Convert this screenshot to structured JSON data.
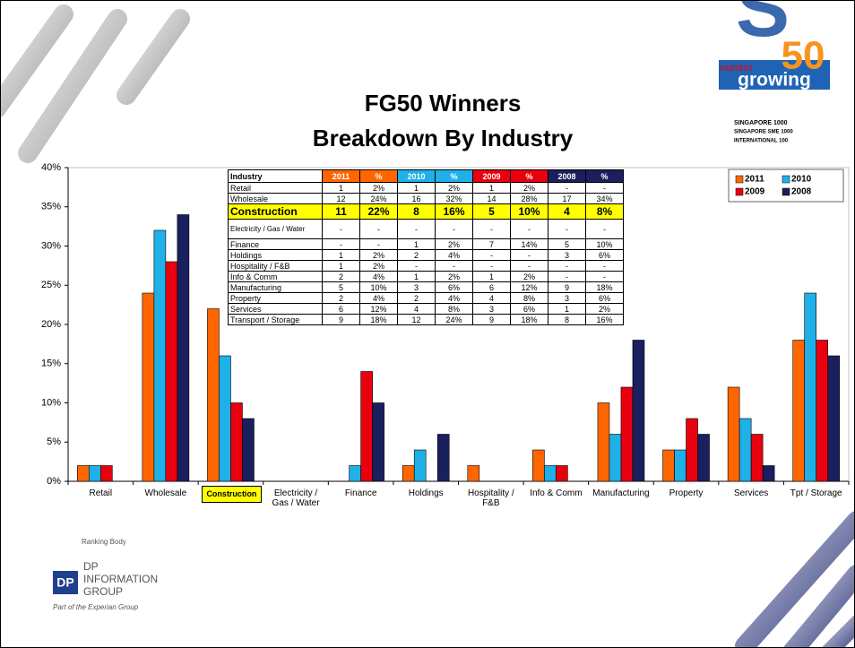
{
  "chart_data": {
    "type": "bar",
    "title": "FG50 Winners",
    "subtitle": "Breakdown By Industry",
    "categories": [
      "Retail",
      "Wholesale",
      "Construction",
      "Electricity / Gas / Water",
      "Finance",
      "Holdings",
      "Hospitality / F&B",
      "Info & Comm",
      "Manufacturing",
      "Property",
      "Services",
      "Tpt / Storage"
    ],
    "highlight_category_index": 2,
    "series": [
      {
        "name": "2011",
        "color": "#ff6600",
        "values": [
          2,
          24,
          22,
          0,
          0,
          2,
          2,
          4,
          10,
          4,
          12,
          18
        ]
      },
      {
        "name": "2010",
        "color": "#1fb0e8",
        "values": [
          2,
          32,
          16,
          0,
          2,
          4,
          0,
          2,
          6,
          4,
          8,
          24
        ]
      },
      {
        "name": "2009",
        "color": "#e8000f",
        "values": [
          2,
          28,
          10,
          0,
          14,
          0,
          0,
          2,
          12,
          8,
          6,
          18
        ]
      },
      {
        "name": "2008",
        "color": "#1a1f5e",
        "values": [
          0,
          34,
          8,
          0,
          10,
          6,
          0,
          0,
          18,
          6,
          2,
          16
        ]
      }
    ],
    "ylim": [
      0,
      40
    ],
    "yticks": [
      {
        "value": 0,
        "label": "0%"
      },
      {
        "value": 5,
        "label": "5%"
      },
      {
        "value": 10,
        "label": "10%"
      },
      {
        "value": 15,
        "label": "15%"
      },
      {
        "value": 20,
        "label": "20%"
      },
      {
        "value": 25,
        "label": "25%"
      },
      {
        "value": 30,
        "label": "30%"
      },
      {
        "value": 35,
        "label": "35%"
      },
      {
        "value": 40,
        "label": "40%"
      }
    ],
    "grid": false,
    "legend": "upper right"
  },
  "table": {
    "header": [
      "Industry",
      "2011",
      "%",
      "2010",
      "%",
      "2009",
      "%",
      "2008",
      "%"
    ],
    "header_colors": [
      "#ffffff",
      "#ff6600",
      "#ff6600",
      "#1fb0e8",
      "#1fb0e8",
      "#e8000f",
      "#e8000f",
      "#1a1f5e",
      "#1a1f5e"
    ],
    "highlight_row": 2,
    "rows": [
      [
        "Retail",
        "1",
        "2%",
        "1",
        "2%",
        "1",
        "2%",
        "-",
        "-"
      ],
      [
        "Wholesale",
        "12",
        "24%",
        "16",
        "32%",
        "14",
        "28%",
        "17",
        "34%"
      ],
      [
        "Construction",
        "11",
        "22%",
        "8",
        "16%",
        "5",
        "10%",
        "4",
        "8%"
      ],
      [
        "Electricity / Gas / Water",
        "-",
        "-",
        "-",
        "-",
        "-",
        "-",
        "-",
        "-"
      ],
      [
        "Finance",
        "-",
        "-",
        "1",
        "2%",
        "7",
        "14%",
        "5",
        "10%"
      ],
      [
        "Holdings",
        "1",
        "2%",
        "2",
        "4%",
        "-",
        "-",
        "3",
        "6%"
      ],
      [
        "Hospitality / F&B",
        "1",
        "2%",
        "-",
        "-",
        "-",
        "-",
        "-",
        "-"
      ],
      [
        "Info & Comm",
        "2",
        "4%",
        "1",
        "2%",
        "1",
        "2%",
        "-",
        "-"
      ],
      [
        "Manufacturing",
        "5",
        "10%",
        "3",
        "6%",
        "6",
        "12%",
        "9",
        "18%"
      ],
      [
        "Property",
        "2",
        "4%",
        "2",
        "4%",
        "4",
        "8%",
        "3",
        "6%"
      ],
      [
        "Services",
        "6",
        "12%",
        "4",
        "8%",
        "3",
        "6%",
        "1",
        "2%"
      ],
      [
        "Transport / Storage",
        "9",
        "18%",
        "12",
        "24%",
        "9",
        "18%",
        "8",
        "16%"
      ]
    ]
  },
  "slide": {
    "logo": {
      "top": "FASTEST",
      "word": "growing",
      "number": "50",
      "lines": [
        "SINGAPORE 1000",
        "SINGAPORE SME 1000",
        "INTERNATIONAL 100"
      ]
    },
    "footer": {
      "ranking": "Ranking Body",
      "mark": "DP",
      "org": [
        "INFORMATION",
        "GROUP"
      ],
      "tagline": "Part of the Experian Group"
    }
  }
}
